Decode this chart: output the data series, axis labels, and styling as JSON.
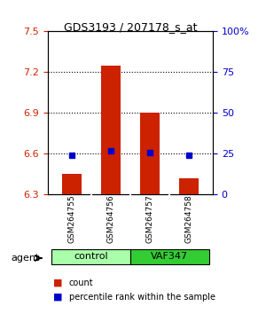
{
  "title": "GDS3193 / 207178_s_at",
  "samples": [
    "GSM264755",
    "GSM264756",
    "GSM264757",
    "GSM264758"
  ],
  "groups": [
    "control",
    "control",
    "VAF347",
    "VAF347"
  ],
  "group_labels": [
    "control",
    "VAF347"
  ],
  "group_colors": [
    "#90ee90",
    "#00cc00"
  ],
  "bar_values": [
    6.45,
    7.25,
    6.9,
    6.42
  ],
  "dot_values": [
    6.59,
    6.62,
    6.61,
    6.59
  ],
  "bar_color": "#cc2200",
  "dot_color": "#0000cc",
  "ylim": [
    6.3,
    7.5
  ],
  "yticks_left": [
    6.3,
    6.6,
    6.9,
    7.2,
    7.5
  ],
  "yticks_right": [
    0,
    25,
    50,
    75,
    100
  ],
  "ytick_labels_right": [
    "0",
    "25",
    "50",
    "75",
    "100%"
  ],
  "grid_values": [
    6.6,
    6.9,
    7.2
  ],
  "bar_bottom": 6.3,
  "agent_label": "agent",
  "legend_count": "count",
  "legend_pct": "percentile rank within the sample",
  "background_color": "#ffffff",
  "plot_bg": "#ffffff",
  "sample_bg": "#c8c8c8",
  "bar_width": 0.5
}
